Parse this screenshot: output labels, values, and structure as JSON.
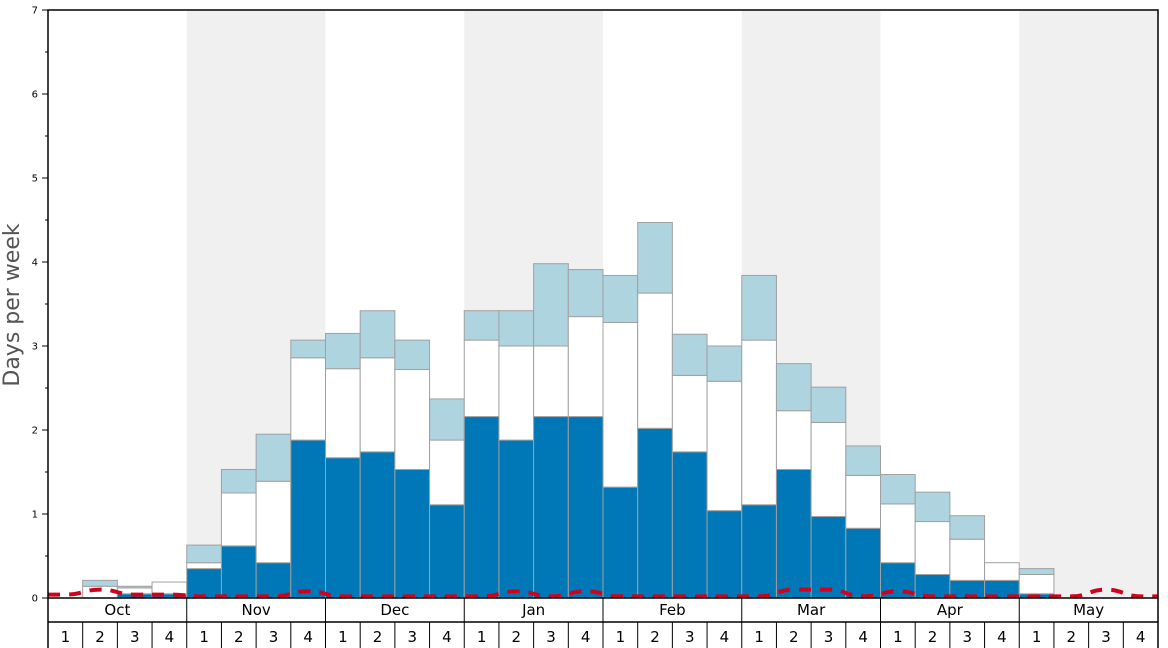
{
  "chart_data": {
    "type": "bar",
    "ylabel": "Days per week",
    "ylim": [
      0,
      7
    ],
    "yticks": [
      "0",
      "1",
      "2",
      "3",
      "4",
      "5",
      "6",
      "7"
    ],
    "months": [
      "Oct",
      "Nov",
      "Dec",
      "Jan",
      "Feb",
      "Mar",
      "Apr",
      "May"
    ],
    "week_labels": [
      "1",
      "2",
      "3",
      "4",
      "1",
      "2",
      "3",
      "4",
      "1",
      "2",
      "3",
      "4",
      "1",
      "2",
      "3",
      "4",
      "1",
      "2",
      "3",
      "4",
      "1",
      "2",
      "3",
      "4",
      "1",
      "2",
      "3",
      "4",
      "1",
      "2",
      "3",
      "4"
    ],
    "series": [
      {
        "color": "#0077b6",
        "values": [
          0.0,
          0.0,
          0.05,
          0.05,
          0.35,
          0.62,
          0.42,
          1.88,
          1.67,
          1.74,
          1.53,
          1.11,
          2.16,
          1.88,
          2.16,
          2.16,
          1.32,
          2.02,
          1.74,
          1.04,
          1.11,
          1.53,
          0.97,
          0.83,
          0.42,
          0.28,
          0.21,
          0.21,
          0.05,
          0.0,
          0.0,
          0.0
        ]
      },
      {
        "color": "#ffffff",
        "values": [
          0.0,
          0.14,
          0.07,
          0.14,
          0.07,
          0.63,
          0.97,
          0.98,
          1.06,
          1.12,
          1.19,
          0.77,
          0.91,
          1.12,
          0.84,
          1.19,
          1.96,
          1.61,
          0.91,
          1.54,
          1.96,
          0.7,
          1.12,
          0.63,
          0.7,
          0.63,
          0.49,
          0.21,
          0.23,
          0.0,
          0.0,
          0.0
        ]
      },
      {
        "color": "#aed4e0",
        "values": [
          0.0,
          0.07,
          0.02,
          0.0,
          0.21,
          0.28,
          0.56,
          0.21,
          0.42,
          0.56,
          0.35,
          0.49,
          0.35,
          0.42,
          0.98,
          0.56,
          0.56,
          0.84,
          0.49,
          0.42,
          0.77,
          0.56,
          0.42,
          0.35,
          0.35,
          0.35,
          0.28,
          0.0,
          0.07,
          0.0,
          0.0,
          0.0
        ]
      }
    ],
    "red_dashed_line": {
      "color": "#d0021b",
      "values": [
        0.04,
        0.1,
        0.04,
        0.04,
        0.02,
        0.02,
        0.02,
        0.08,
        0.02,
        0.02,
        0.02,
        0.02,
        0.02,
        0.08,
        0.02,
        0.08,
        0.02,
        0.02,
        0.02,
        0.02,
        0.02,
        0.1,
        0.1,
        0.02,
        0.08,
        0.02,
        0.02,
        0.02,
        0.02,
        0.02,
        0.1,
        0.02
      ]
    },
    "shaded_month_bands": [
      "Nov",
      "Jan",
      "Mar",
      "May"
    ],
    "shade_color": "#f0f0f0",
    "bar_stroke_color": "#a0a0a0"
  }
}
